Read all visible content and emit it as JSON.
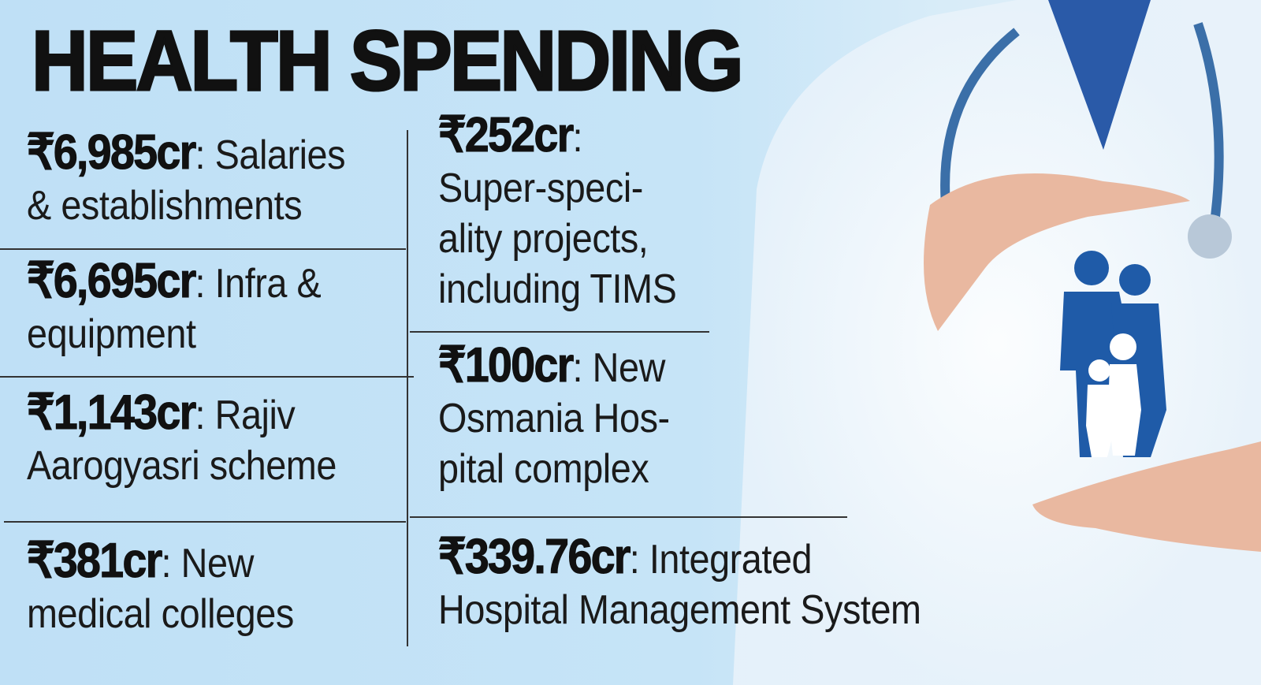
{
  "title": "HEALTH SPENDING",
  "left_column": [
    {
      "amount": "₹6,985cr",
      "detail": ": Salaries\n& establishments"
    },
    {
      "amount": "₹6,695cr",
      "detail": ": Infra &\nequipment"
    },
    {
      "amount": "₹1,143cr",
      "detail": ":  Rajiv\nAarogyasri scheme"
    },
    {
      "amount": "₹381cr",
      "detail": ": New\nmedical colleges"
    }
  ],
  "right_column": [
    {
      "amount": "₹252cr",
      "detail": ":\nSuper-speci-\nality projects,\nincluding TIMS"
    },
    {
      "amount": "₹100cr",
      "detail": ": New\nOsmania Hos-\npital complex"
    },
    {
      "amount": "₹339.76cr",
      "detail": ": Integrated\nHospital Management System"
    }
  ]
}
